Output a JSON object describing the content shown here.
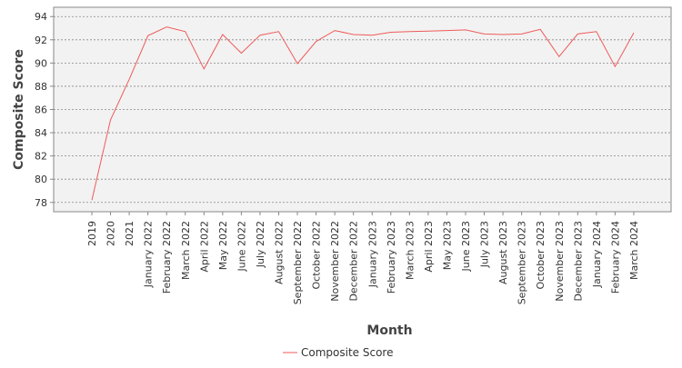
{
  "chart_data": {
    "type": "line",
    "title": "",
    "xlabel": "Month",
    "ylabel": "Composite Score",
    "ylim": [
      77.2,
      94.8
    ],
    "yticks": [
      78,
      80,
      82,
      84,
      86,
      88,
      90,
      92,
      94
    ],
    "grid": true,
    "legend_position": "bottom",
    "categories": [
      "2019",
      "2020",
      "2021",
      "January 2022",
      "February 2022",
      "March 2022",
      "April 2022",
      "May 2022",
      "June 2022",
      "July 2022",
      "August 2022",
      "September 2022",
      "October 2022",
      "November 2022",
      "December 2022",
      "January 2023",
      "February 2023",
      "March 2023",
      "April 2023",
      "May 2023",
      "June 2023",
      "July 2023",
      "August 2023",
      "September 2023",
      "October 2023",
      "November 2023",
      "December 2023",
      "January 2024",
      "February 2024",
      "March 2024"
    ],
    "series": [
      {
        "name": "Composite Score",
        "color": "#f05a5a",
        "values": [
          78.2,
          85.1,
          88.6,
          92.35,
          93.1,
          92.7,
          89.5,
          92.45,
          90.85,
          92.4,
          92.7,
          89.95,
          91.85,
          92.8,
          92.45,
          92.4,
          92.65,
          92.7,
          92.75,
          92.8,
          92.85,
          92.5,
          92.45,
          92.5,
          92.9,
          90.55,
          92.5,
          92.7,
          89.7,
          92.6
        ]
      }
    ],
    "colors": {
      "plot_background": "#f2f2f2",
      "gridline": "#888888",
      "frame": "#888888"
    }
  }
}
